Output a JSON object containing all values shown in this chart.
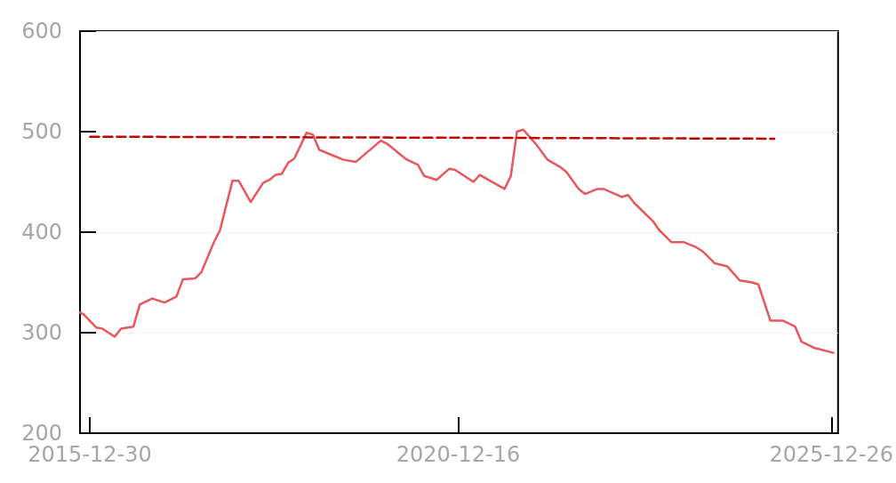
{
  "chart_data": {
    "type": "line",
    "xlim": [
      "2015-11-12",
      "2026-01-28"
    ],
    "xticks": [
      "2015-12-30",
      "2020-12-16",
      "2025-12-26"
    ],
    "ylim": [
      200,
      600
    ],
    "yticks": [
      200,
      300,
      400,
      500,
      600
    ],
    "grid": "y",
    "line_style": "solid",
    "marker": "none",
    "series": [
      {
        "color": "#e8575c",
        "x": [
          "2015-11-12",
          "2015-12",
          "2016-02",
          "2016-03",
          "2016-05",
          "2016-06",
          "2016-08",
          "2016-09",
          "2016-11",
          "2017-01",
          "2017-03",
          "2017-04",
          "2017-06",
          "2017-07",
          "2017-09",
          "2017-10",
          "2017-12",
          "2018-01",
          "2018-03",
          "2018-05",
          "2018-06",
          "2018-07",
          "2018-08",
          "2018-09",
          "2018-10",
          "2018-12",
          "2019-01",
          "2019-02",
          "2019-04",
          "2019-06",
          "2019-08",
          "2019-12",
          "2020-01",
          "2020-04",
          "2020-06",
          "2020-07",
          "2020-09",
          "2020-11",
          "2020-12",
          "2021-03",
          "2021-04",
          "2021-08",
          "2021-09",
          "2021-10",
          "2021-11",
          "2022-01",
          "2022-03",
          "2022-05",
          "2022-06",
          "2022-08",
          "2022-09",
          "2022-11",
          "2022-12",
          "2023-03",
          "2023-04",
          "2023-05",
          "2023-08",
          "2023-09",
          "2023-11",
          "2024-01",
          "2024-03",
          "2024-04",
          "2024-06",
          "2024-08",
          "2024-10",
          "2024-12",
          "2025-01",
          "2025-03",
          "2025-05",
          "2025-07",
          "2025-08",
          "2025-10",
          "2026-01-05"
        ],
        "values": [
          320,
          318,
          305,
          304,
          296,
          304,
          306,
          328,
          334,
          330,
          336,
          353,
          354,
          360,
          390,
          402,
          451,
          451,
          430,
          449,
          452,
          457,
          458,
          469,
          473,
          499,
          497,
          482,
          477,
          472,
          470,
          491,
          488,
          473,
          467,
          456,
          452,
          463,
          462,
          450,
          457,
          443,
          456,
          500,
          502,
          488,
          472,
          465,
          460,
          443,
          438,
          443,
          443,
          435,
          437,
          429,
          411,
          402,
          390,
          390,
          385,
          381,
          369,
          366,
          352,
          350,
          348,
          312,
          312,
          306,
          291,
          285,
          280
        ]
      },
      {
        "color": "#c00000",
        "line_style": "dashed",
        "x": [
          "2016-01",
          "2025-03-20"
        ],
        "values": [
          495,
          493
        ]
      }
    ]
  }
}
